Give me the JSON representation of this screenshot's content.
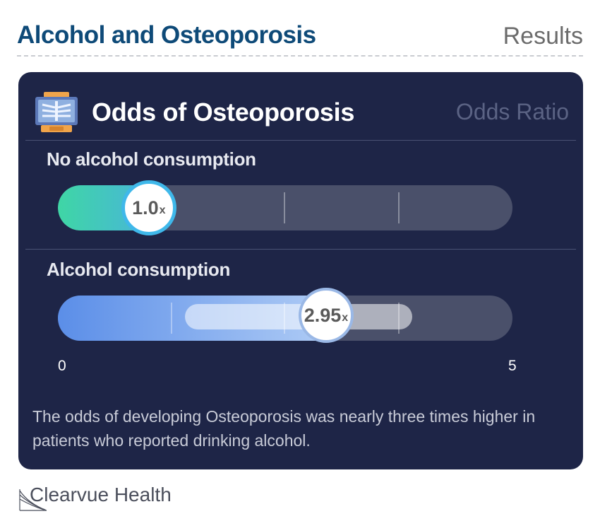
{
  "header": {
    "title": "Alcohol and Osteoporosis",
    "section": "Results"
  },
  "card": {
    "icon": "xray-icon",
    "title": "Odds of Osteoporosis",
    "subtitle": "Odds Ratio"
  },
  "chart_data": {
    "type": "bar",
    "title": "Odds of Osteoporosis",
    "xlabel": "",
    "ylabel": "",
    "xlim": [
      0,
      5
    ],
    "axis_labels": {
      "min": "0",
      "max": "5"
    },
    "categories": [
      "No alcohol consumption",
      "Alcohol consumption"
    ],
    "values": [
      1.0,
      2.95
    ],
    "value_labels": [
      "1.0",
      "2.95"
    ],
    "unit": "x",
    "ranges": [
      null,
      [
        1.4,
        3.9
      ]
    ],
    "colors": {
      "no_alcohol": "#3fd6a5",
      "alcohol": "#5b8ee8"
    }
  },
  "footnote": "The odds of developing Osteoporosis was nearly three times higher in patients who reported drinking alcohol.",
  "brand": {
    "name": "Clearvue Health"
  }
}
